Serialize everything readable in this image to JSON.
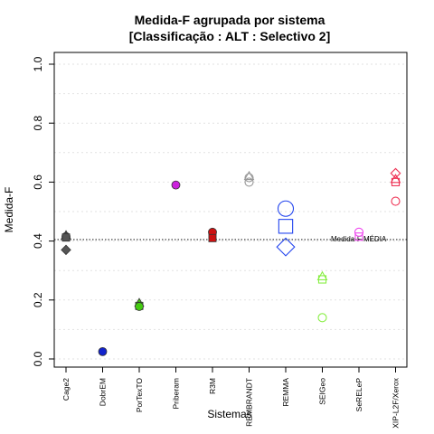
{
  "chart_data": {
    "type": "scatter",
    "title": "Medida-F agrupada por sistema",
    "subtitle": "[Classificação : ALT : Selectivo 2]",
    "xlabel": "Sistemas",
    "ylabel": "Medida-F",
    "ylim": [
      0,
      1
    ],
    "yticks": [
      "0.0",
      "0.2",
      "0.4",
      "0.6",
      "0.8",
      "1.0"
    ],
    "grid": true,
    "categories": [
      "Cage2",
      "DobrEM",
      "PorTexTO",
      "Priberam",
      "R3M",
      "REMBRANDT",
      "REMMA",
      "SEIGeo",
      "SeRELeP",
      "XIP-L2F/Xerox"
    ],
    "reference_line": {
      "value": 0.405,
      "label": "Medida-F MÉDIA"
    },
    "colors": {
      "Cage2": "#555555",
      "DobrEM": "#1122cc",
      "PorTexTO": "#44cc11",
      "Priberam": "#cc22dd",
      "R3M": "#cc1111",
      "REMBRANDT": "#999999",
      "REMMA": "#2244ee",
      "SEIGeo": "#88ee44",
      "SeRELeP": "#ee44ee",
      "XIP-L2F/Xerox": "#ee3355"
    },
    "points": [
      {
        "category": "Cage2",
        "y": 0.42,
        "shape": "triangle",
        "filled": true,
        "size": 1
      },
      {
        "category": "Cage2",
        "y": 0.415,
        "shape": "circle",
        "filled": true,
        "size": 1
      },
      {
        "category": "Cage2",
        "y": 0.412,
        "shape": "square",
        "filled": true,
        "size": 1
      },
      {
        "category": "Cage2",
        "y": 0.37,
        "shape": "diamond",
        "filled": true,
        "size": 1
      },
      {
        "category": "DobrEM",
        "y": 0.025,
        "shape": "circle",
        "filled": true,
        "size": 1
      },
      {
        "category": "PorTexTO",
        "y": 0.19,
        "shape": "triangle",
        "filled": true,
        "size": 1
      },
      {
        "category": "PorTexTO",
        "y": 0.18,
        "shape": "square",
        "filled": true,
        "size": 1
      },
      {
        "category": "PorTexTO",
        "y": 0.178,
        "shape": "circle",
        "filled": true,
        "size": 1
      },
      {
        "category": "Priberam",
        "y": 0.59,
        "shape": "circle",
        "filled": true,
        "size": 1
      },
      {
        "category": "R3M",
        "y": 0.43,
        "shape": "circle",
        "filled": true,
        "size": 1
      },
      {
        "category": "R3M",
        "y": 0.41,
        "shape": "square",
        "filled": true,
        "size": 1
      },
      {
        "category": "REMBRANDT",
        "y": 0.62,
        "shape": "triangle",
        "filled": false,
        "size": 1
      },
      {
        "category": "REMBRANDT",
        "y": 0.615,
        "shape": "circle",
        "filled": false,
        "size": 1
      },
      {
        "category": "REMBRANDT",
        "y": 0.6,
        "shape": "circle",
        "filled": false,
        "size": 1
      },
      {
        "category": "REMMA",
        "y": 0.51,
        "shape": "circle",
        "filled": false,
        "size": 2
      },
      {
        "category": "REMMA",
        "y": 0.45,
        "shape": "square",
        "filled": false,
        "size": 2
      },
      {
        "category": "REMMA",
        "y": 0.38,
        "shape": "diamond",
        "filled": false,
        "size": 2
      },
      {
        "category": "SEIGeo",
        "y": 0.28,
        "shape": "triangle",
        "filled": false,
        "size": 1
      },
      {
        "category": "SEIGeo",
        "y": 0.27,
        "shape": "square",
        "filled": false,
        "size": 1
      },
      {
        "category": "SEIGeo",
        "y": 0.14,
        "shape": "circle",
        "filled": false,
        "size": 1
      },
      {
        "category": "SeRELeP",
        "y": 0.43,
        "shape": "circle",
        "filled": false,
        "size": 1
      },
      {
        "category": "SeRELeP",
        "y": 0.415,
        "shape": "square",
        "filled": false,
        "size": 1
      },
      {
        "category": "XIP-L2F/Xerox",
        "y": 0.63,
        "shape": "diamond",
        "filled": false,
        "size": 1
      },
      {
        "category": "XIP-L2F/Xerox",
        "y": 0.61,
        "shape": "triangle",
        "filled": false,
        "size": 1
      },
      {
        "category": "XIP-L2F/Xerox",
        "y": 0.6,
        "shape": "square",
        "filled": false,
        "size": 1
      },
      {
        "category": "XIP-L2F/Xerox",
        "y": 0.535,
        "shape": "circle",
        "filled": false,
        "size": 1
      }
    ]
  }
}
